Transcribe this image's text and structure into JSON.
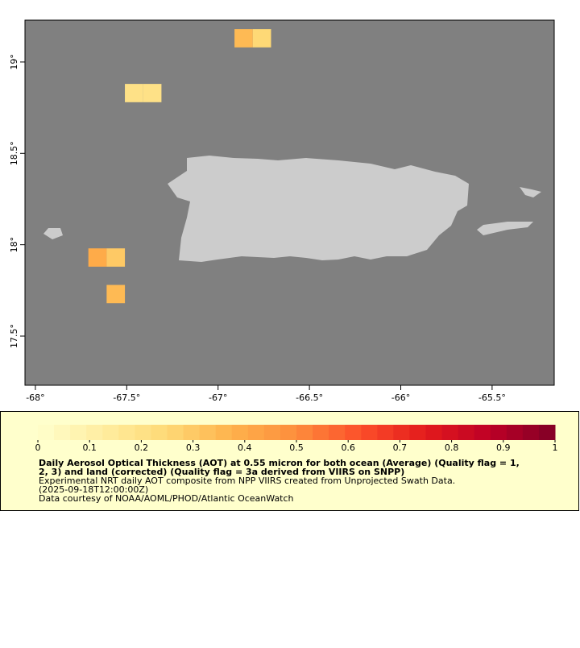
{
  "chart_data": {
    "type": "heatmap-map",
    "xlim": [
      -68.057,
      -65.16
    ],
    "ylim": [
      17.231,
      19.229
    ],
    "xticks": [
      {
        "value": -68,
        "label": "-68°"
      },
      {
        "value": -67.5,
        "label": "-67.5°"
      },
      {
        "value": -67,
        "label": "-67°"
      },
      {
        "value": -66.5,
        "label": "-66.5°"
      },
      {
        "value": -66,
        "label": "-66°"
      },
      {
        "value": -65.5,
        "label": "-65.5°"
      }
    ],
    "yticks": [
      {
        "value": 17.5,
        "label": "17.5°"
      },
      {
        "value": 18,
        "label": "18°"
      },
      {
        "value": 18.5,
        "label": "18.5°"
      },
      {
        "value": 19,
        "label": "19°"
      }
    ],
    "cells": [
      {
        "lon": -66.86,
        "lat": 19.13,
        "value": 0.35
      },
      {
        "lon": -66.76,
        "lat": 19.13,
        "value": 0.25
      },
      {
        "lon": -67.46,
        "lat": 18.83,
        "value": 0.2
      },
      {
        "lon": -67.36,
        "lat": 18.83,
        "value": 0.2
      },
      {
        "lon": -67.66,
        "lat": 17.93,
        "value": 0.4
      },
      {
        "lon": -67.56,
        "lat": 17.93,
        "value": 0.3
      },
      {
        "lon": -67.56,
        "lat": 17.73,
        "value": 0.35
      }
    ],
    "colorbar": {
      "clim": [
        0,
        1
      ],
      "ticks": [
        0,
        0.1,
        0.2,
        0.3,
        0.4,
        0.5,
        0.6,
        0.7,
        0.8,
        0.9,
        1
      ],
      "palette": [
        "#ffffcc",
        "#ffeda0",
        "#fed976",
        "#feb24c",
        "#fd8d3c",
        "#fc4e2a",
        "#e31a1c",
        "#bd0026",
        "#800026"
      ]
    },
    "title": [
      "Daily Aerosol Optical Thickness (AOT) at 0.55 micron for both ocean (Average) (Quality flag = 1,",
      "2, 3) and land (corrected) (Quality flag = 3a derived from VIIRS on SNPP)"
    ],
    "notes": [
      "Experimental NRT daily AOT composite from NPP VIIRS created from Unprojected Swath Data.",
      "(2025-09-18T12:00:00Z)",
      "Data courtesy of NOAA/AOML/PHOD/Atlantic OceanWatch"
    ],
    "ocean_color": "#808080",
    "land_color": "#cccccc",
    "legend_background": "#ffffcc"
  }
}
